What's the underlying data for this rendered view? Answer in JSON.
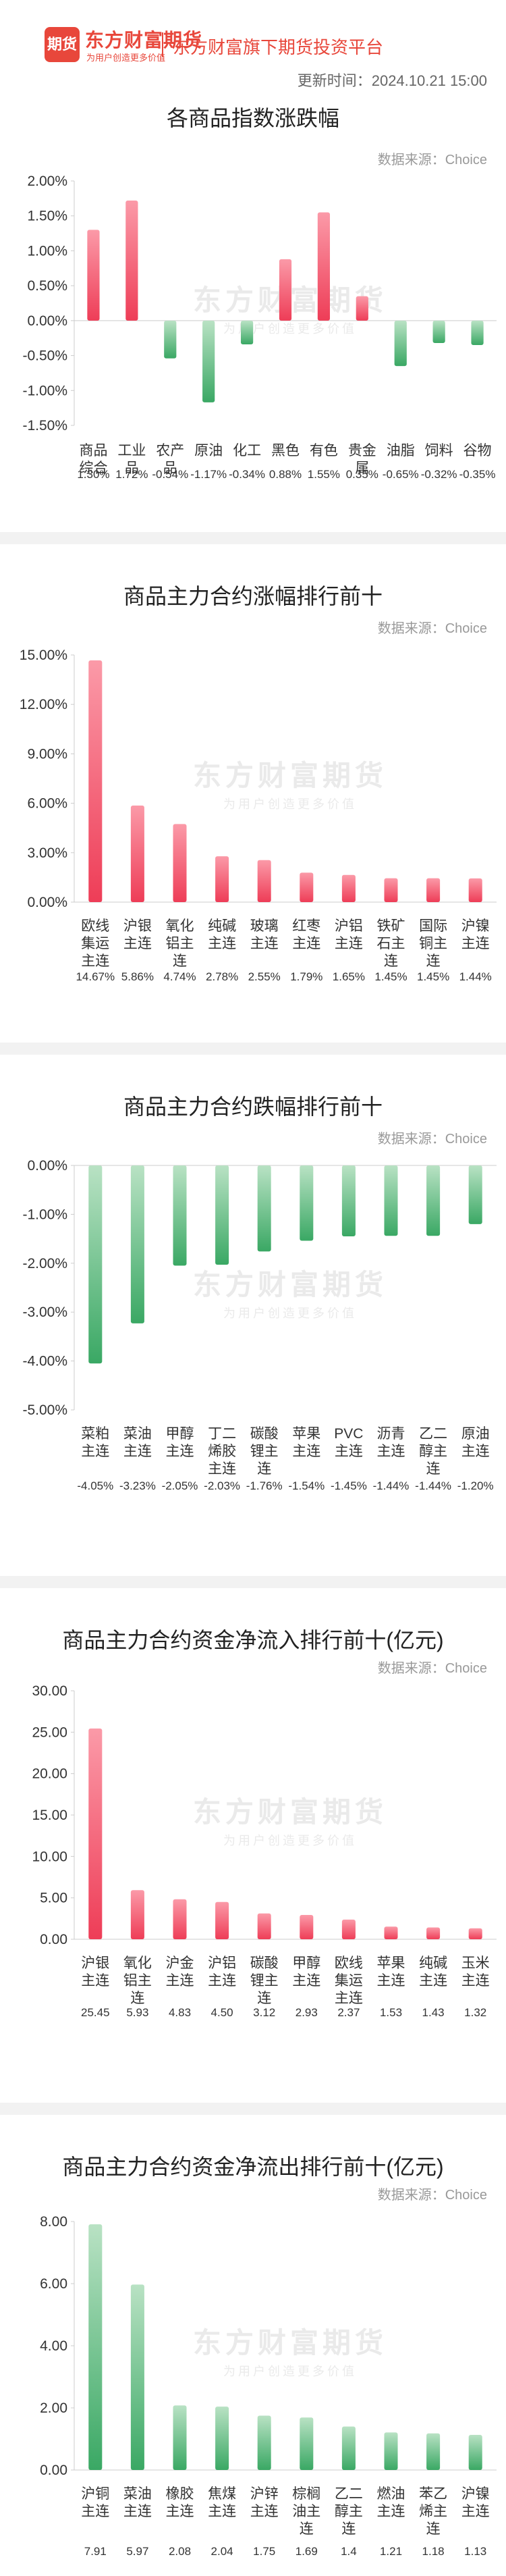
{
  "header": {
    "logo_badge": "期货",
    "logo_brand": "东方财富期货",
    "logo_slogan": "为用户创造更多价值",
    "platform": "东方财富旗下期货投资平台",
    "update_label": "更新时间：",
    "update_time": "2024.10.21 15:00"
  },
  "watermark": {
    "main": "东方财富期货",
    "sub": "为用户创造更多价值"
  },
  "colors": {
    "red_top": "#fb9aa8",
    "red_bottom": "#ee3d57",
    "green_top": "#b9e2c4",
    "green_bottom": "#3aa864"
  },
  "chart_data": [
    {
      "type": "bar",
      "title": "各商品指数涨跌幅",
      "source": "数据来源：Choice",
      "ylim": [
        -1.5,
        2.0
      ],
      "yticks": [
        2.0,
        1.5,
        1.0,
        0.5,
        0.0,
        -0.5,
        -1.0,
        -1.5
      ],
      "tick_format": "percent2",
      "grid": false,
      "categories": [
        "商品综合",
        "工业品",
        "农产品",
        "原油",
        "化工",
        "黑色",
        "有色",
        "贵金属",
        "油脂",
        "饲料",
        "谷物"
      ],
      "values": [
        1.3,
        1.72,
        -0.54,
        -1.17,
        -0.34,
        0.88,
        1.55,
        0.35,
        -0.65,
        -0.32,
        -0.35
      ],
      "value_labels": [
        "1.30%",
        "1.72%",
        "-0.54%",
        "-1.17%",
        "-0.34%",
        "0.88%",
        "1.55%",
        "0.35%",
        "-0.65%",
        "-0.32%",
        "-0.35%"
      ]
    },
    {
      "type": "bar",
      "title": "商品主力合约涨幅排行前十",
      "source": "数据来源：Choice",
      "ylim": [
        0,
        15.0
      ],
      "yticks": [
        15.0,
        12.0,
        9.0,
        6.0,
        3.0,
        0.0
      ],
      "tick_format": "percent2",
      "grid": false,
      "categories": [
        "欧线集运主连",
        "沪银主连",
        "氧化铝主连",
        "纯碱主连",
        "玻璃主连",
        "红枣主连",
        "沪铝主连",
        "铁矿石主连",
        "国际铜主连",
        "沪镍主连"
      ],
      "values": [
        14.67,
        5.86,
        4.74,
        2.78,
        2.55,
        1.79,
        1.65,
        1.45,
        1.45,
        1.44
      ],
      "value_labels": [
        "14.67%",
        "5.86%",
        "4.74%",
        "2.78%",
        "2.55%",
        "1.79%",
        "1.65%",
        "1.45%",
        "1.45%",
        "1.44%"
      ]
    },
    {
      "type": "bar",
      "title": "商品主力合约跌幅排行前十",
      "source": "数据来源：Choice",
      "ylim": [
        -5.0,
        0
      ],
      "yticks": [
        0.0,
        -1.0,
        -2.0,
        -3.0,
        -4.0,
        -5.0
      ],
      "tick_format": "percent2",
      "grid": false,
      "categories": [
        "菜粕主连",
        "菜油主连",
        "甲醇主连",
        "丁二烯胶主连",
        "碳酸锂主连",
        "苹果主连",
        "PVC主连",
        "沥青主连",
        "乙二醇主连",
        "原油主连"
      ],
      "values": [
        -4.05,
        -3.23,
        -2.05,
        -2.03,
        -1.76,
        -1.54,
        -1.45,
        -1.44,
        -1.44,
        -1.2
      ],
      "value_labels": [
        "-4.05%",
        "-3.23%",
        "-2.05%",
        "-2.03%",
        "-1.76%",
        "-1.54%",
        "-1.45%",
        "-1.44%",
        "-1.44%",
        "-1.20%"
      ]
    },
    {
      "type": "bar",
      "title": "商品主力合约资金净流入排行前十(亿元)",
      "source": "数据来源：Choice",
      "ylim": [
        0,
        30.0
      ],
      "yticks": [
        30.0,
        25.0,
        20.0,
        15.0,
        10.0,
        5.0,
        0.0
      ],
      "tick_format": "fixed2",
      "grid": false,
      "categories": [
        "沪银主连",
        "氧化铝主连",
        "沪金主连",
        "沪铝主连",
        "碳酸锂主连",
        "甲醇主连",
        "欧线集运主连",
        "苹果主连",
        "纯碱主连",
        "玉米主连"
      ],
      "values": [
        25.45,
        5.93,
        4.83,
        4.5,
        3.12,
        2.93,
        2.37,
        1.53,
        1.43,
        1.32
      ],
      "value_labels": [
        "25.45",
        "5.93",
        "4.83",
        "4.50",
        "3.12",
        "2.93",
        "2.37",
        "1.53",
        "1.43",
        "1.32"
      ]
    },
    {
      "type": "bar",
      "title": "商品主力合约资金净流出排行前十(亿元)",
      "source": "数据来源：Choice",
      "ylim": [
        0,
        8.0
      ],
      "yticks": [
        8.0,
        6.0,
        4.0,
        2.0,
        0.0
      ],
      "tick_format": "fixed2",
      "grid": false,
      "categories": [
        "沪铜主连",
        "菜油主连",
        "橡胶主连",
        "焦煤主连",
        "沪锌主连",
        "棕榈油主连",
        "乙二醇主连",
        "燃油主连",
        "苯乙烯主连",
        "沪镍主连"
      ],
      "values": [
        7.91,
        5.97,
        2.08,
        2.04,
        1.75,
        1.69,
        1.4,
        1.21,
        1.18,
        1.13
      ],
      "value_labels": [
        "7.91",
        "5.97",
        "2.08",
        "2.04",
        "1.75",
        "1.69",
        "1.4",
        "1.21",
        "1.18",
        "1.13"
      ]
    }
  ]
}
